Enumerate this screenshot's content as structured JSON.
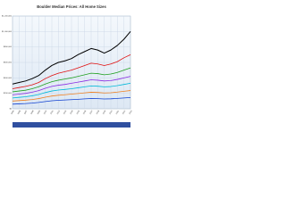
{
  "chart_data": {
    "type": "line",
    "title": "Boulder Median Prices: All Home Sizes",
    "categories": [
      "1995",
      "1996",
      "1997",
      "1998",
      "1999",
      "2000",
      "2001",
      "2002",
      "2003",
      "2004",
      "2005",
      "2006",
      "2007",
      "2008",
      "2009",
      "2010",
      "2011",
      "2012",
      "2013"
    ],
    "series": [
      {
        "color": "#000000",
        "values": [
          320000,
          340000,
          360000,
          390000,
          430000,
          500000,
          560000,
          600000,
          620000,
          650000,
          700000,
          740000,
          780000,
          760000,
          720000,
          760000,
          820000,
          900000,
          1000000
        ]
      },
      {
        "color": "#e01010",
        "values": [
          260000,
          275000,
          290000,
          310000,
          340000,
          390000,
          430000,
          460000,
          480000,
          500000,
          530000,
          560000,
          590000,
          580000,
          560000,
          580000,
          610000,
          660000,
          700000
        ]
      },
      {
        "color": "#20a020",
        "values": [
          220000,
          230000,
          240000,
          260000,
          285000,
          320000,
          350000,
          370000,
          385000,
          400000,
          420000,
          440000,
          460000,
          455000,
          440000,
          450000,
          470000,
          500000,
          530000
        ]
      },
      {
        "color": "#8a2be2",
        "values": [
          180000,
          190000,
          200000,
          215000,
          235000,
          265000,
          290000,
          305000,
          315000,
          330000,
          345000,
          360000,
          375000,
          370000,
          360000,
          365000,
          380000,
          400000,
          420000
        ]
      },
      {
        "color": "#00b8d8",
        "values": [
          140000,
          148000,
          156000,
          168000,
          185000,
          210000,
          230000,
          242000,
          250000,
          260000,
          272000,
          284000,
          296000,
          292000,
          284000,
          288000,
          300000,
          315000,
          330000
        ]
      },
      {
        "color": "#f08020",
        "values": [
          100000,
          106000,
          112000,
          120000,
          132000,
          150000,
          165000,
          175000,
          182000,
          190000,
          198000,
          206000,
          214000,
          211000,
          205000,
          208000,
          216000,
          226000,
          236000
        ]
      },
      {
        "color": "#1040d0",
        "values": [
          60000,
          64000,
          68000,
          74000,
          82000,
          94000,
          104000,
          110000,
          114000,
          118000,
          123000,
          128000,
          133000,
          131000,
          127000,
          129000,
          134000,
          140000,
          146000
        ]
      }
    ],
    "ylim": [
      0,
      1200000
    ],
    "yticks": [
      {
        "value": 0,
        "label": "$0"
      },
      {
        "value": 200000,
        "label": "$200,000"
      },
      {
        "value": 400000,
        "label": "$400,000"
      },
      {
        "value": 600000,
        "label": "$600,000"
      },
      {
        "value": 800000,
        "label": "$800,000"
      },
      {
        "value": 1000000,
        "label": "$1,000,000"
      },
      {
        "value": 1200000,
        "label": "$1,200,000"
      }
    ],
    "grid": true
  }
}
